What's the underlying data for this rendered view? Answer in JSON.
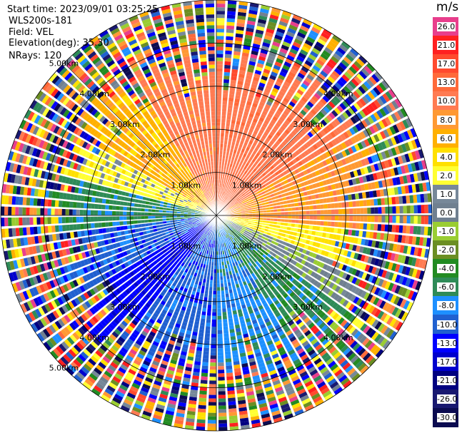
{
  "info": {
    "start_time": "Start time: 2023/09/01 03:25:25",
    "site": "WLS200s-181",
    "field": "Field: VEL",
    "elevation": "Elevation(deg): 35.30",
    "nrays": "NRays: 120"
  },
  "colorbar": {
    "unit": "m/s",
    "levels": [
      {
        "label": "26.0",
        "color": "#e83e8c"
      },
      {
        "label": "21.0",
        "color": "#ff2020"
      },
      {
        "label": "17.0",
        "color": "#ff4a2e"
      },
      {
        "label": "13.0",
        "color": "#ff6a3a"
      },
      {
        "label": "10.0",
        "color": "#ff7b52"
      },
      {
        "label": "8.0",
        "color": "#ff9933"
      },
      {
        "label": "6.0",
        "color": "#ffb000"
      },
      {
        "label": "4.0",
        "color": "#ffe000"
      },
      {
        "label": "2.0",
        "color": "#ffff33"
      },
      {
        "label": "1.0",
        "color": "#778899"
      },
      {
        "label": "0.0",
        "color": "#708090"
      },
      {
        "label": "-1.0",
        "color": "#9acd32"
      },
      {
        "label": "-2.0",
        "color": "#6b8e23"
      },
      {
        "label": "-4.0",
        "color": "#228b22"
      },
      {
        "label": "-6.0",
        "color": "#2e8b57"
      },
      {
        "label": "-8.0",
        "color": "#1e90ff"
      },
      {
        "label": "-10.0",
        "color": "#2060d0"
      },
      {
        "label": "-13.0",
        "color": "#0000ff"
      },
      {
        "label": "-17.0",
        "color": "#0000cd"
      },
      {
        "label": "-21.0",
        "color": "#000080"
      },
      {
        "label": "-26.0",
        "color": "#191970"
      },
      {
        "label": "-30.0",
        "color": "#0b0b50"
      }
    ]
  },
  "chart_data": {
    "type": "ppi",
    "title": "VEL",
    "field": "VEL",
    "unit": "m/s",
    "nrays": 120,
    "elevation_deg": 35.3,
    "max_range_km": 5.0,
    "range_rings_km": [
      1.0,
      2.0,
      3.0,
      4.0,
      5.0
    ],
    "ring_labels": [
      "1.00km",
      "2.00km",
      "3.00km",
      "4.00km",
      "5.00km"
    ],
    "sectors": [
      {
        "from_az": 0,
        "to_az": 60,
        "value_ms": 12.0
      },
      {
        "from_az": 60,
        "to_az": 95,
        "value_ms": 9.0
      },
      {
        "from_az": 95,
        "to_az": 110,
        "value_ms": 4.0
      },
      {
        "from_az": 110,
        "to_az": 125,
        "value_ms": 0.5
      },
      {
        "from_az": 125,
        "to_az": 150,
        "value_ms": -5.0
      },
      {
        "from_az": 150,
        "to_az": 180,
        "value_ms": -7.0
      },
      {
        "from_az": 180,
        "to_az": 215,
        "value_ms": -9.0
      },
      {
        "from_az": 215,
        "to_az": 240,
        "value_ms": -12.0
      },
      {
        "from_az": 240,
        "to_az": 265,
        "value_ms": -9.0
      },
      {
        "from_az": 265,
        "to_az": 285,
        "value_ms": -5.0
      },
      {
        "from_az": 285,
        "to_az": 300,
        "value_ms": 3.0
      },
      {
        "from_az": 300,
        "to_az": 330,
        "value_ms": 7.0
      },
      {
        "from_az": 330,
        "to_az": 360,
        "value_ms": 11.0
      }
    ]
  }
}
